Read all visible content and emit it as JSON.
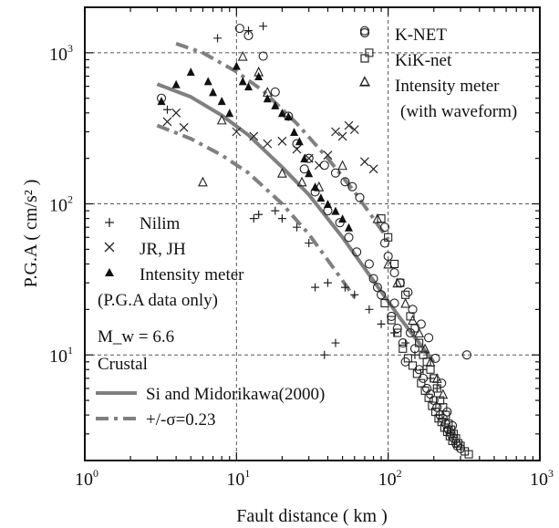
{
  "chart_data": {
    "type": "scatter",
    "xscale": "log",
    "yscale": "log",
    "xlim": [
      1,
      1000
    ],
    "ylim": [
      2,
      2000
    ],
    "x_ticks": [
      {
        "base": "10",
        "exp": "0"
      },
      {
        "base": "10",
        "exp": "1"
      },
      {
        "base": "10",
        "exp": "2"
      },
      {
        "base": "10",
        "exp": "3"
      }
    ],
    "y_ticks": [
      {
        "value": 10,
        "base": "10",
        "exp": "1"
      },
      {
        "value": 100,
        "base": "10",
        "exp": "2"
      },
      {
        "value": 1000,
        "base": "10",
        "exp": "3"
      }
    ],
    "xlabel": "Fault distance ( km )",
    "ylabel": "P.G.A ( cm/s² )",
    "grid": "dashed at decades",
    "legend_top_right": [
      "K-NET",
      "KiK-net",
      "Intensity meter",
      "(with waveform)"
    ],
    "legend_left": [
      "Nilim",
      "JR, JH",
      "Intensity meter",
      "(P.G.A data only)"
    ],
    "annotation_mw": "M_w = 6.6",
    "annotation_type": "Crustal",
    "line_labels": [
      "Si and Midorikawa(2000)",
      "+/-σ=0.23"
    ],
    "curves": [
      {
        "name": "Si and Midorikawa(2000)",
        "style": "solid",
        "color": "#808080",
        "x": [
          3,
          5,
          8,
          12,
          20,
          30,
          50,
          80,
          120,
          160,
          200
        ],
        "y": [
          620,
          510,
          385,
          285,
          175,
          115,
          60,
          31,
          17.5,
          12,
          9
        ]
      },
      {
        "name": "+σ",
        "style": "dashed",
        "color": "#808080",
        "x": [
          4,
          6,
          10,
          15,
          25,
          40,
          60,
          80,
          100
        ],
        "y": [
          1150,
          1000,
          750,
          560,
          340,
          200,
          120,
          80,
          58
        ]
      },
      {
        "name": "-σ",
        "style": "dashed",
        "color": "#808080",
        "x": [
          3,
          5,
          8,
          12,
          20,
          30,
          45,
          60
        ],
        "y": [
          330,
          270,
          210,
          160,
          100,
          63,
          36,
          24
        ]
      }
    ],
    "series": [
      {
        "name": "K-NET",
        "marker": "circle",
        "x": [
          3.2,
          10.5,
          12,
          15,
          18,
          22,
          25,
          28,
          33,
          40,
          48,
          55,
          62,
          70,
          75,
          80,
          85,
          90,
          95,
          100,
          105,
          110,
          115,
          120,
          125,
          130,
          140,
          150,
          160,
          170,
          180,
          190,
          200,
          210,
          220,
          230,
          240,
          250,
          260,
          270,
          280,
          300,
          330,
          65,
          58,
          52,
          45,
          38,
          30,
          95,
          110,
          135,
          145,
          165,
          185,
          205,
          225,
          245,
          265,
          285
        ],
        "y": [
          500,
          1450,
          1300,
          950,
          550,
          380,
          250,
          170,
          120,
          90,
          75,
          60,
          48,
          1400,
          40,
          32,
          28,
          25,
          55,
          45,
          18,
          22,
          15,
          30,
          12,
          9,
          14,
          11,
          8,
          7,
          6,
          5.5,
          5,
          4.5,
          4,
          3.8,
          3.5,
          3.2,
          3,
          2.8,
          2.6,
          2.4,
          10,
          110,
          130,
          140,
          160,
          180,
          200,
          70,
          35,
          26,
          20,
          16,
          13,
          9.5,
          6.5,
          4.2,
          3.4,
          2.5
        ]
      },
      {
        "name": "KiK-net",
        "marker": "square",
        "x": [
          75,
          90,
          100,
          110,
          120,
          130,
          140,
          150,
          160,
          170,
          180,
          190,
          200,
          210,
          220,
          230,
          240,
          250,
          260,
          270,
          280,
          290,
          300,
          320,
          340,
          95,
          105,
          115,
          125,
          135,
          145,
          155,
          165,
          175,
          185,
          195,
          205,
          215,
          225,
          235,
          245,
          255,
          265
        ],
        "y": [
          1000,
          80,
          60,
          40,
          30,
          25,
          18,
          15,
          12,
          10,
          9,
          8,
          7,
          6,
          5,
          4.5,
          4,
          3.5,
          3.2,
          3,
          2.8,
          2.6,
          2.5,
          2.3,
          2.2,
          22,
          17,
          14,
          11,
          9.5,
          8.5,
          7.5,
          6.5,
          5.8,
          5.2,
          4.6,
          4.2,
          3.8,
          3.6,
          3.3,
          3.1,
          2.9,
          2.7
        ]
      },
      {
        "name": "Intensity meter",
        "marker": "triangle-open",
        "x": [
          6,
          8,
          11,
          14,
          16,
          20,
          27,
          35,
          50,
          70,
          85,
          100,
          115,
          130,
          145,
          160,
          175,
          190,
          210,
          230
        ],
        "y": [
          140,
          360,
          950,
          750,
          550,
          160,
          140,
          130,
          180,
          650,
          80,
          40,
          30,
          22,
          17,
          14,
          11,
          9,
          7,
          5.5
        ]
      },
      {
        "name": "Nilim",
        "marker": "plus",
        "x": [
          3.5,
          7.5,
          12,
          15,
          18,
          20,
          25,
          30,
          40,
          52,
          60,
          75,
          90,
          110,
          130,
          150,
          170,
          190,
          210,
          14,
          13,
          45,
          38,
          33
        ],
        "y": [
          420,
          1250,
          1400,
          1500,
          90,
          80,
          70,
          55,
          30,
          28,
          25,
          20,
          16,
          14,
          12,
          10,
          8,
          7,
          6,
          85,
          80,
          12,
          10,
          28
        ]
      },
      {
        "name": "JR, JH",
        "marker": "x",
        "x": [
          3.5,
          4,
          4.5,
          10,
          13,
          16,
          20,
          25,
          30,
          35,
          40,
          45,
          50,
          55,
          60,
          70,
          80
        ],
        "y": [
          350,
          400,
          320,
          300,
          280,
          250,
          260,
          230,
          200,
          180,
          210,
          300,
          280,
          330,
          310,
          190,
          170
        ]
      },
      {
        "name": "Intensity meter (P.G.A data only)",
        "marker": "triangle-filled",
        "x": [
          3.2,
          4,
          5,
          6.5,
          7,
          8,
          9,
          10,
          11,
          12,
          14,
          16,
          18,
          20,
          22,
          24,
          26,
          28,
          30,
          33,
          36,
          40,
          45,
          50,
          55
        ],
        "y": [
          480,
          620,
          750,
          650,
          550,
          480,
          400,
          820,
          650,
          600,
          700,
          500,
          450,
          400,
          380,
          300,
          260,
          200,
          160,
          130,
          110,
          100,
          90,
          80,
          70
        ]
      }
    ]
  }
}
